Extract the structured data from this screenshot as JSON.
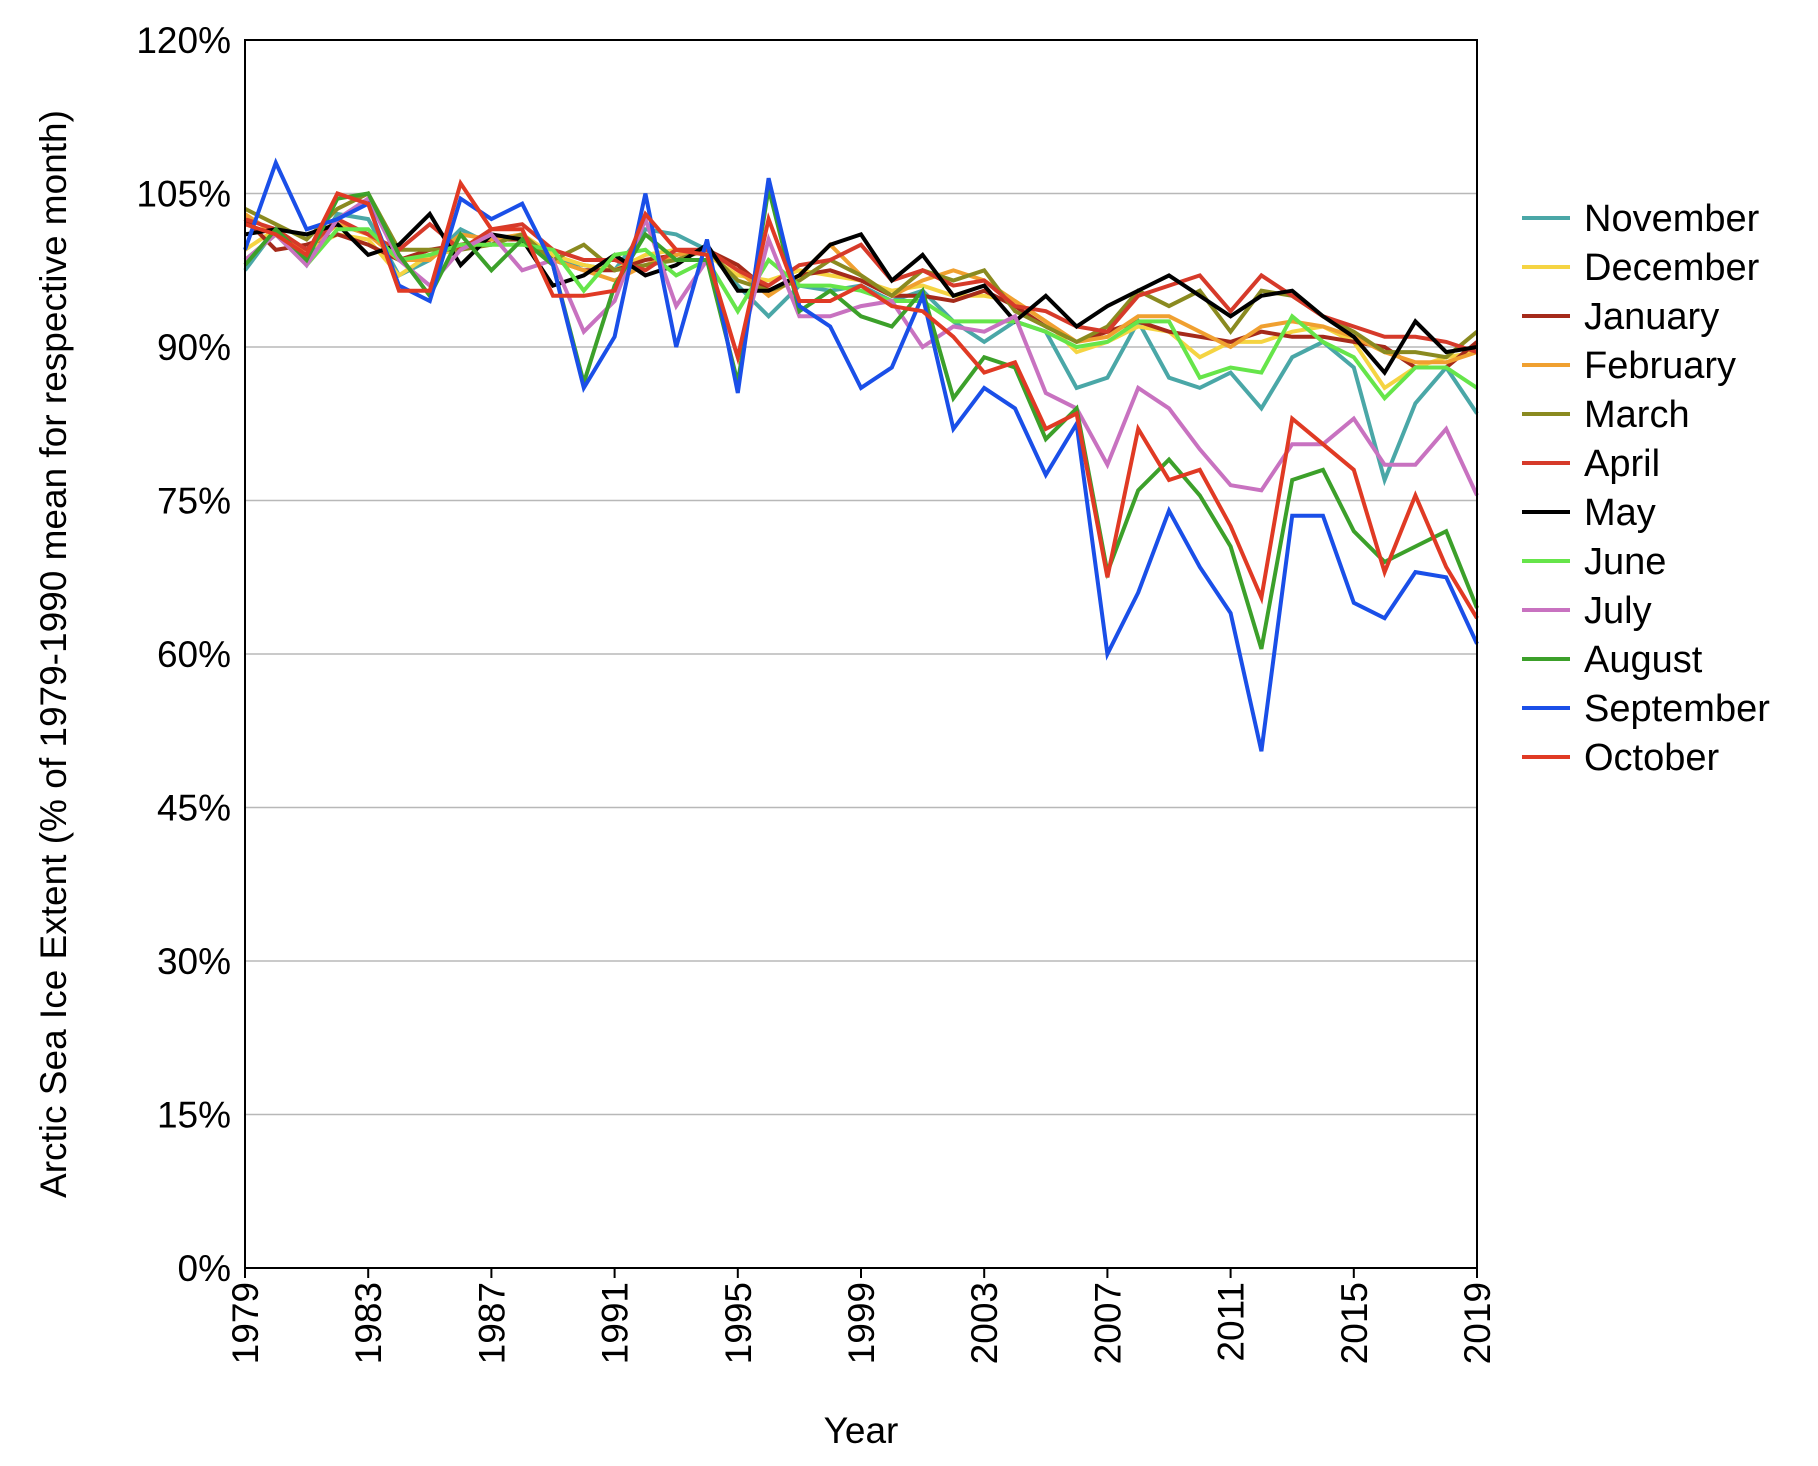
{
  "chart_data": {
    "type": "line",
    "title": "",
    "xlabel": "Year",
    "ylabel": "Arctic Sea Ice Extent (% of 1979-1990 mean for respective month)",
    "x": [
      1979,
      1980,
      1981,
      1982,
      1983,
      1984,
      1985,
      1986,
      1987,
      1988,
      1989,
      1990,
      1991,
      1992,
      1993,
      1994,
      1995,
      1996,
      1997,
      1998,
      1999,
      2000,
      2001,
      2002,
      2003,
      2004,
      2005,
      2006,
      2007,
      2008,
      2009,
      2010,
      2011,
      2012,
      2013,
      2014,
      2015,
      2016,
      2017,
      2018,
      2019
    ],
    "xlim": [
      1979,
      2019
    ],
    "ylim": [
      0,
      120
    ],
    "y_ticks": [
      0,
      15,
      30,
      45,
      60,
      75,
      90,
      105,
      120
    ],
    "y_tick_labels": [
      "0%",
      "15%",
      "30%",
      "45%",
      "60%",
      "75%",
      "90%",
      "105%",
      "120%"
    ],
    "x_ticks": [
      1979,
      1983,
      1987,
      1991,
      1995,
      1999,
      2003,
      2007,
      2011,
      2015,
      2019
    ],
    "x_tick_labels": [
      "1979",
      "1983",
      "1987",
      "1991",
      "1995",
      "1999",
      "2003",
      "2007",
      "2011",
      "2015",
      "2019"
    ],
    "grid": "horizontal",
    "legend_position": "right",
    "series": [
      {
        "name": "November",
        "color": "#4aa7a7",
        "values": [
          97.5,
          101.5,
          98.0,
          103.0,
          102.5,
          97.0,
          98.5,
          101.5,
          100.0,
          101.0,
          98.5,
          98.0,
          97.5,
          101.5,
          101.0,
          99.5,
          96.0,
          93.0,
          96.0,
          95.5,
          96.0,
          94.5,
          95.5,
          92.5,
          90.5,
          92.5,
          91.5,
          86.0,
          87.0,
          92.5,
          87.0,
          86.0,
          87.5,
          84.0,
          89.0,
          90.5,
          88.0,
          77.0,
          84.5,
          88.0,
          83.5
        ]
      },
      {
        "name": "December",
        "color": "#f5d442",
        "values": [
          99.5,
          101.5,
          99.5,
          101.0,
          100.5,
          97.0,
          99.0,
          99.5,
          100.5,
          101.0,
          99.0,
          98.0,
          97.5,
          99.0,
          99.5,
          99.0,
          97.0,
          96.5,
          97.5,
          97.0,
          96.5,
          95.5,
          96.0,
          95.0,
          95.0,
          94.5,
          92.5,
          89.5,
          90.5,
          92.0,
          91.5,
          89.0,
          90.5,
          90.5,
          91.5,
          92.0,
          90.5,
          86.0,
          88.0,
          89.0,
          89.5
        ]
      },
      {
        "name": "January",
        "color": "#a52a1a",
        "values": [
          102.5,
          99.5,
          100.0,
          101.0,
          100.0,
          98.5,
          99.5,
          100.0,
          100.5,
          100.5,
          98.5,
          97.5,
          97.5,
          98.5,
          99.0,
          99.5,
          98.0,
          95.5,
          97.0,
          97.5,
          96.5,
          95.0,
          95.0,
          94.5,
          95.5,
          94.0,
          92.0,
          90.5,
          91.5,
          92.5,
          91.5,
          91.0,
          90.5,
          91.5,
          91.0,
          91.0,
          90.5,
          90.0,
          88.0,
          88.0,
          90.5
        ]
      },
      {
        "name": "February",
        "color": "#f0a030",
        "values": [
          103.0,
          101.0,
          99.5,
          102.0,
          101.0,
          98.5,
          98.5,
          101.0,
          100.5,
          101.0,
          98.5,
          97.5,
          96.5,
          98.0,
          99.0,
          99.5,
          97.5,
          95.0,
          97.0,
          100.0,
          97.0,
          95.0,
          96.5,
          97.5,
          96.5,
          94.5,
          92.5,
          90.5,
          91.0,
          93.0,
          93.0,
          91.5,
          90.0,
          92.0,
          92.5,
          92.0,
          91.0,
          89.5,
          88.5,
          88.5,
          89.5
        ]
      },
      {
        "name": "March",
        "color": "#8a8a20",
        "values": [
          103.5,
          102.0,
          100.5,
          103.5,
          105.0,
          99.5,
          99.5,
          99.5,
          100.0,
          101.0,
          98.5,
          100.0,
          97.5,
          98.0,
          98.5,
          99.5,
          96.5,
          95.5,
          96.5,
          98.5,
          97.0,
          95.0,
          97.5,
          96.5,
          97.5,
          93.5,
          92.0,
          90.5,
          92.0,
          95.5,
          94.0,
          95.5,
          91.5,
          95.5,
          95.0,
          93.0,
          91.5,
          89.5,
          89.5,
          89.0,
          91.5
        ]
      },
      {
        "name": "April",
        "color": "#d63a2a",
        "values": [
          102.5,
          101.5,
          99.5,
          102.5,
          101.0,
          99.5,
          102.0,
          99.5,
          101.5,
          102.0,
          99.5,
          98.5,
          98.5,
          97.5,
          99.5,
          99.5,
          97.5,
          96.0,
          98.0,
          98.5,
          100.0,
          96.5,
          97.5,
          96.0,
          96.5,
          94.0,
          93.5,
          92.0,
          91.5,
          95.0,
          96.0,
          97.0,
          93.5,
          97.0,
          95.0,
          93.0,
          92.0,
          91.0,
          91.0,
          90.5,
          89.5
        ]
      },
      {
        "name": "May",
        "color": "#000000",
        "values": [
          101.0,
          101.5,
          101.0,
          102.0,
          99.0,
          100.0,
          103.0,
          98.0,
          101.0,
          100.5,
          96.0,
          97.0,
          99.0,
          97.0,
          98.0,
          100.0,
          95.5,
          95.5,
          97.0,
          100.0,
          101.0,
          96.5,
          99.0,
          95.0,
          96.0,
          92.5,
          95.0,
          92.0,
          94.0,
          95.5,
          97.0,
          95.0,
          93.0,
          95.0,
          95.5,
          93.0,
          91.0,
          87.5,
          92.5,
          89.5,
          90.0
        ]
      },
      {
        "name": "June",
        "color": "#66e54a",
        "values": [
          98.5,
          101.0,
          98.0,
          101.5,
          101.5,
          98.5,
          99.0,
          100.0,
          100.0,
          100.0,
          99.5,
          95.5,
          99.0,
          99.5,
          97.0,
          98.5,
          93.5,
          98.5,
          96.0,
          96.0,
          95.5,
          94.5,
          94.5,
          92.5,
          92.5,
          92.5,
          91.5,
          90.0,
          90.5,
          92.5,
          92.5,
          87.0,
          88.0,
          87.5,
          93.0,
          90.5,
          89.0,
          85.0,
          88.0,
          88.0,
          86.0
        ]
      },
      {
        "name": "July",
        "color": "#c872c0",
        "values": [
          98.5,
          101.0,
          98.0,
          102.5,
          104.5,
          98.5,
          96.0,
          99.5,
          101.0,
          97.5,
          98.5,
          91.5,
          94.5,
          102.5,
          94.0,
          98.5,
          89.0,
          100.5,
          93.0,
          93.0,
          94.0,
          94.5,
          90.0,
          92.0,
          91.5,
          93.0,
          85.5,
          84.0,
          78.5,
          86.0,
          84.0,
          80.0,
          76.5,
          76.0,
          80.5,
          80.5,
          83.0,
          78.5,
          78.5,
          82.0,
          75.5
        ]
      },
      {
        "name": "August",
        "color": "#3ca02a",
        "values": [
          98.0,
          101.5,
          98.5,
          104.5,
          105.0,
          99.0,
          95.0,
          101.0,
          97.5,
          100.5,
          98.0,
          86.5,
          96.0,
          101.0,
          98.5,
          98.5,
          86.5,
          105.5,
          93.5,
          95.5,
          93.0,
          92.0,
          95.5,
          85.0,
          89.0,
          88.0,
          81.0,
          84.0,
          68.0,
          76.0,
          79.0,
          75.5,
          70.5,
          60.5,
          77.0,
          78.0,
          72.0,
          69.0,
          70.5,
          72.0,
          64.5
        ]
      },
      {
        "name": "September",
        "color": "#1a4fe8",
        "values": [
          99.5,
          108.0,
          101.5,
          102.5,
          104.0,
          96.0,
          94.5,
          104.5,
          102.5,
          104.0,
          98.0,
          86.0,
          91.0,
          105.0,
          90.0,
          100.5,
          85.5,
          106.5,
          94.0,
          92.0,
          86.0,
          88.0,
          95.0,
          82.0,
          86.0,
          84.0,
          77.5,
          82.5,
          60.0,
          66.0,
          74.0,
          68.5,
          64.0,
          50.5,
          73.5,
          73.5,
          65.0,
          63.5,
          68.0,
          67.5,
          61.0
        ]
      },
      {
        "name": "October",
        "color": "#e03a24",
        "values": [
          102.0,
          101.0,
          99.0,
          105.0,
          104.0,
          95.5,
          95.5,
          106.0,
          101.5,
          101.5,
          95.0,
          95.0,
          95.5,
          103.0,
          99.5,
          99.0,
          89.0,
          102.5,
          94.5,
          94.5,
          96.0,
          94.0,
          93.5,
          91.0,
          87.5,
          88.5,
          82.0,
          83.5,
          67.5,
          82.0,
          77.0,
          78.0,
          72.5,
          65.5,
          83.0,
          80.5,
          78.0,
          68.0,
          75.5,
          68.5,
          63.5
        ]
      }
    ]
  }
}
